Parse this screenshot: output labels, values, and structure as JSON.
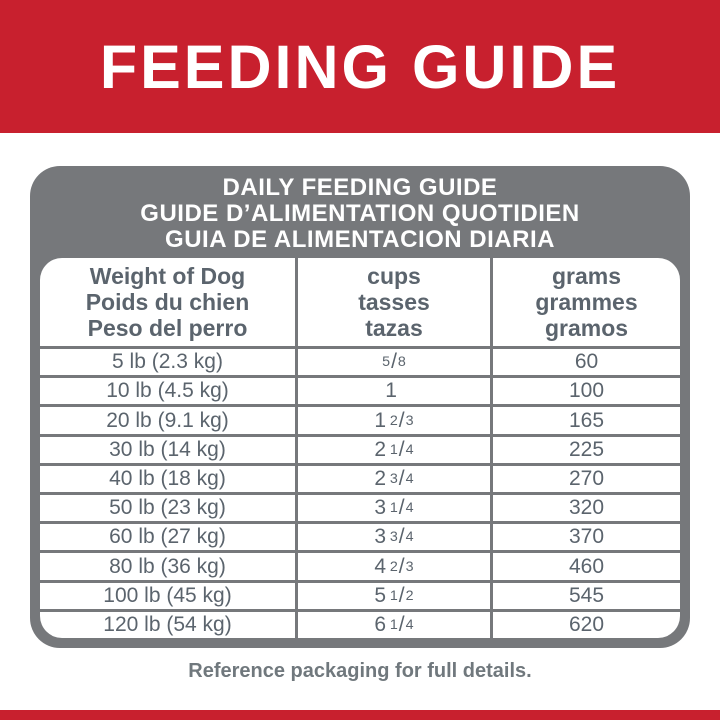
{
  "banner": {
    "title": "FEEDING GUIDE"
  },
  "colors": {
    "brand_red": "#c8202e",
    "panel_gray": "#76787b",
    "text_slate": "#5b646d",
    "white": "#ffffff"
  },
  "table": {
    "title_lines": [
      "DAILY FEEDING GUIDE",
      "GUIDE D’ALIMENTATION QUOTIDIEN",
      "GUIA DE ALIMENTACION DIARIA"
    ],
    "columns": [
      {
        "lines": [
          "Weight of Dog",
          "Poids du chien",
          "Peso del perro"
        ]
      },
      {
        "lines": [
          "cups",
          "tasses",
          "tazas"
        ]
      },
      {
        "lines": [
          "grams",
          "grammes",
          "gramos"
        ]
      }
    ],
    "rows": [
      {
        "weight": "5 lb (2.3 kg)",
        "cups": {
          "whole": "",
          "num": "5",
          "slash": "/",
          "den": "8"
        },
        "grams": "60"
      },
      {
        "weight": "10 lb (4.5 kg)",
        "cups": {
          "whole": "1",
          "num": "",
          "slash": "",
          "den": ""
        },
        "grams": "100"
      },
      {
        "weight": "20 lb (9.1 kg)",
        "cups": {
          "whole": "1",
          "num": "2",
          "slash": "/",
          "den": "3"
        },
        "grams": "165"
      },
      {
        "weight": "30 lb (14 kg)",
        "cups": {
          "whole": "2",
          "num": "1",
          "slash": "/",
          "den": "4"
        },
        "grams": "225"
      },
      {
        "weight": "40 lb (18 kg)",
        "cups": {
          "whole": "2",
          "num": "3",
          "slash": "/",
          "den": "4"
        },
        "grams": "270"
      },
      {
        "weight": "50 lb (23 kg)",
        "cups": {
          "whole": "3",
          "num": "1",
          "slash": "/",
          "den": "4"
        },
        "grams": "320"
      },
      {
        "weight": "60 lb (27 kg)",
        "cups": {
          "whole": "3",
          "num": "3",
          "slash": "/",
          "den": "4"
        },
        "grams": "370"
      },
      {
        "weight": "80 lb (36 kg)",
        "cups": {
          "whole": "4",
          "num": "2",
          "slash": "/",
          "den": "3"
        },
        "grams": "460"
      },
      {
        "weight": "100 lb (45 kg)",
        "cups": {
          "whole": "5",
          "num": "1",
          "slash": "/",
          "den": "2"
        },
        "grams": "545"
      },
      {
        "weight": "120 lb (54 kg)",
        "cups": {
          "whole": "6",
          "num": "1",
          "slash": "/",
          "den": "4"
        },
        "grams": "620"
      }
    ]
  },
  "footer": {
    "text": "Reference packaging for full details."
  }
}
